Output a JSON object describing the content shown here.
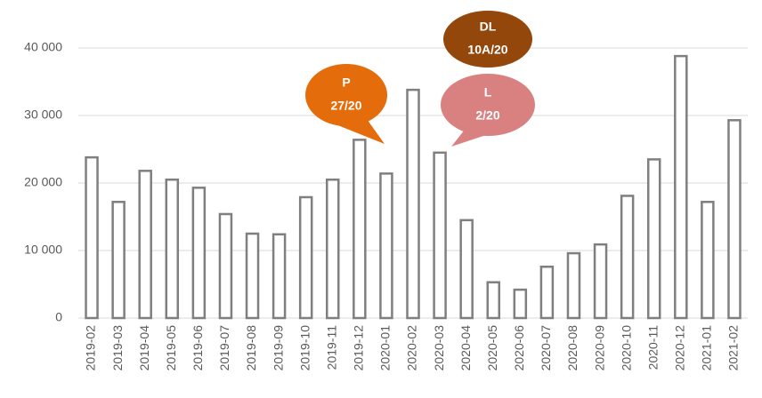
{
  "chart_data": {
    "type": "bar",
    "categories": [
      "2019-02",
      "2019-03",
      "2019-04",
      "2019-05",
      "2019-06",
      "2019-07",
      "2019-08",
      "2019-09",
      "2019-10",
      "2019-11",
      "2019-12",
      "2020-01",
      "2020-02",
      "2020-03",
      "2020-04",
      "2020-05",
      "2020-06",
      "2020-07",
      "2020-08",
      "2020-09",
      "2020-10",
      "2020-11",
      "2020-12",
      "2021-01",
      "2021-02"
    ],
    "values": [
      23800,
      17200,
      21800,
      20500,
      19300,
      15400,
      12500,
      12400,
      17900,
      20500,
      26400,
      21400,
      33800,
      24500,
      14500,
      5300,
      4200,
      7600,
      9600,
      10900,
      18100,
      23500,
      38800,
      17200,
      29300
    ],
    "color": "#7f7f7f",
    "ylim": [
      0,
      40000
    ],
    "yticks": [
      0,
      {
        "value": 10000,
        "label": "10 000"
      },
      {
        "value": 20000,
        "label": "20 000"
      },
      {
        "value": 30000,
        "label": "30 000"
      },
      {
        "value": 40000,
        "label": "40 000"
      }
    ],
    "grid": true,
    "annotations": [
      {
        "lines": [
          "P",
          "27/20"
        ],
        "color": "#e46c0a",
        "category": "2019-12"
      },
      {
        "lines": [
          "L",
          "2/20"
        ],
        "color": "#d98080",
        "category": "2020-03"
      },
      {
        "lines": [
          "DL",
          "10A/20"
        ],
        "color": "#94470b",
        "category": "2020-03"
      }
    ]
  }
}
